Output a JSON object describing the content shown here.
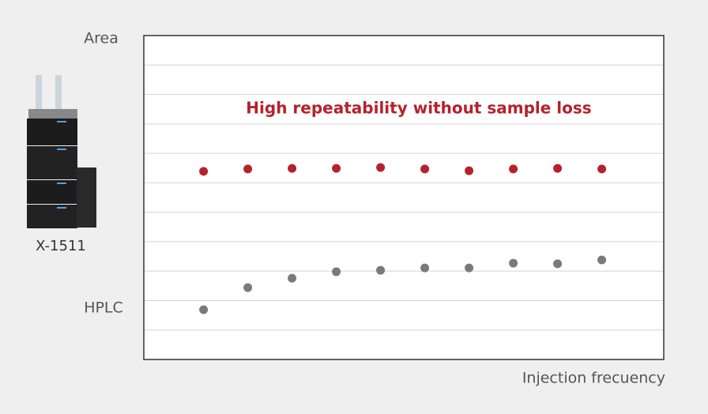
{
  "chart_data": {
    "type": "scatter",
    "y_label": "Area",
    "x_label": "Injection frecuency",
    "annotation": "High repeatability without sample loss",
    "x": [
      1,
      2,
      3,
      4,
      5,
      6,
      7,
      8,
      9,
      10
    ],
    "xlim": [
      -0.35,
      11.4
    ],
    "ylim": [
      0,
      11
    ],
    "ygrid": [
      1,
      2,
      3,
      4,
      5,
      6,
      7,
      8,
      9,
      10
    ],
    "series": [
      {
        "name": "X-1511",
        "color": "#b5222a",
        "values": [
          6.39,
          6.47,
          6.49,
          6.49,
          6.52,
          6.47,
          6.41,
          6.47,
          6.49,
          6.47
        ]
      },
      {
        "name": "HPLC",
        "color": "#7a7a7a",
        "values": [
          1.69,
          2.44,
          2.76,
          2.98,
          3.03,
          3.11,
          3.11,
          3.27,
          3.25,
          3.38
        ]
      }
    ]
  }
}
